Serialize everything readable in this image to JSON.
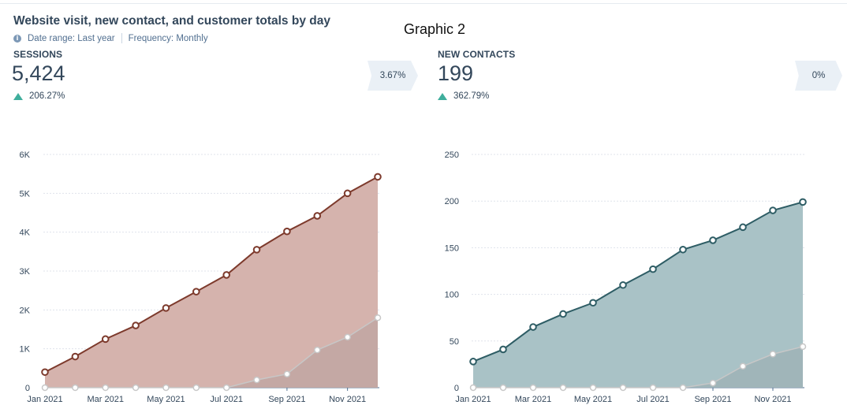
{
  "header": {
    "title": "Website visit, new contact, and customer totals by day",
    "date_range": "Date range: Last year",
    "frequency": "Frequency: Monthly",
    "info_icon": "info-icon"
  },
  "annotation": "Graphic 2",
  "panels": [
    {
      "metric_label": "SESSIONS",
      "metric_value": "5,424",
      "change": "206.27%",
      "change_direction": "up",
      "badge": "3.67%"
    },
    {
      "metric_label": "NEW CONTACTS",
      "metric_value": "199",
      "change": "362.79%",
      "change_direction": "up",
      "badge": "0%"
    }
  ],
  "colors": {
    "sessions_line": "#7d3a2c",
    "sessions_fill": "#d5b3ad",
    "contacts_line": "#2e5d65",
    "contacts_fill": "#a9c2c6",
    "secondary_line": "#c7c7c7",
    "change_up": "#3fae9c"
  },
  "chart_data": [
    {
      "type": "area",
      "x": [
        "Jan 2021",
        "Feb 2021",
        "Mar 2021",
        "Apr 2021",
        "May 2021",
        "Jun 2021",
        "Jul 2021",
        "Aug 2021",
        "Sep 2021",
        "Oct 2021",
        "Nov 2021",
        "Dec 2021"
      ],
      "x_tick_labels": [
        "Jan 2021",
        "Mar 2021",
        "May 2021",
        "Jul 2021",
        "Sep 2021",
        "Nov 2021"
      ],
      "y_tick_labels": [
        "0",
        "1K",
        "2K",
        "3K",
        "4K",
        "5K",
        "6K"
      ],
      "ylim": [
        0,
        6000
      ],
      "grid": true,
      "series": [
        {
          "values": [
            400,
            800,
            1250,
            1600,
            2050,
            2470,
            2900,
            3550,
            4020,
            4420,
            5000,
            5424
          ]
        },
        {
          "values": [
            0,
            0,
            0,
            0,
            0,
            0,
            0,
            200,
            350,
            970,
            1300,
            1800
          ]
        }
      ]
    },
    {
      "type": "area",
      "x": [
        "Jan 2021",
        "Feb 2021",
        "Mar 2021",
        "Apr 2021",
        "May 2021",
        "Jun 2021",
        "Jul 2021",
        "Aug 2021",
        "Sep 2021",
        "Oct 2021",
        "Nov 2021",
        "Dec 2021"
      ],
      "x_tick_labels": [
        "Jan 2021",
        "Mar 2021",
        "May 2021",
        "Jul 2021",
        "Sep 2021",
        "Nov 2021"
      ],
      "y_tick_labels": [
        "0",
        "50",
        "100",
        "150",
        "200",
        "250"
      ],
      "ylim": [
        0,
        250
      ],
      "grid": true,
      "series": [
        {
          "values": [
            28,
            41,
            65,
            79,
            91,
            110,
            127,
            148,
            158,
            172,
            190,
            199
          ]
        },
        {
          "values": [
            0,
            0,
            0,
            0,
            0,
            0,
            0,
            0,
            5,
            23,
            36,
            44
          ]
        }
      ]
    }
  ]
}
